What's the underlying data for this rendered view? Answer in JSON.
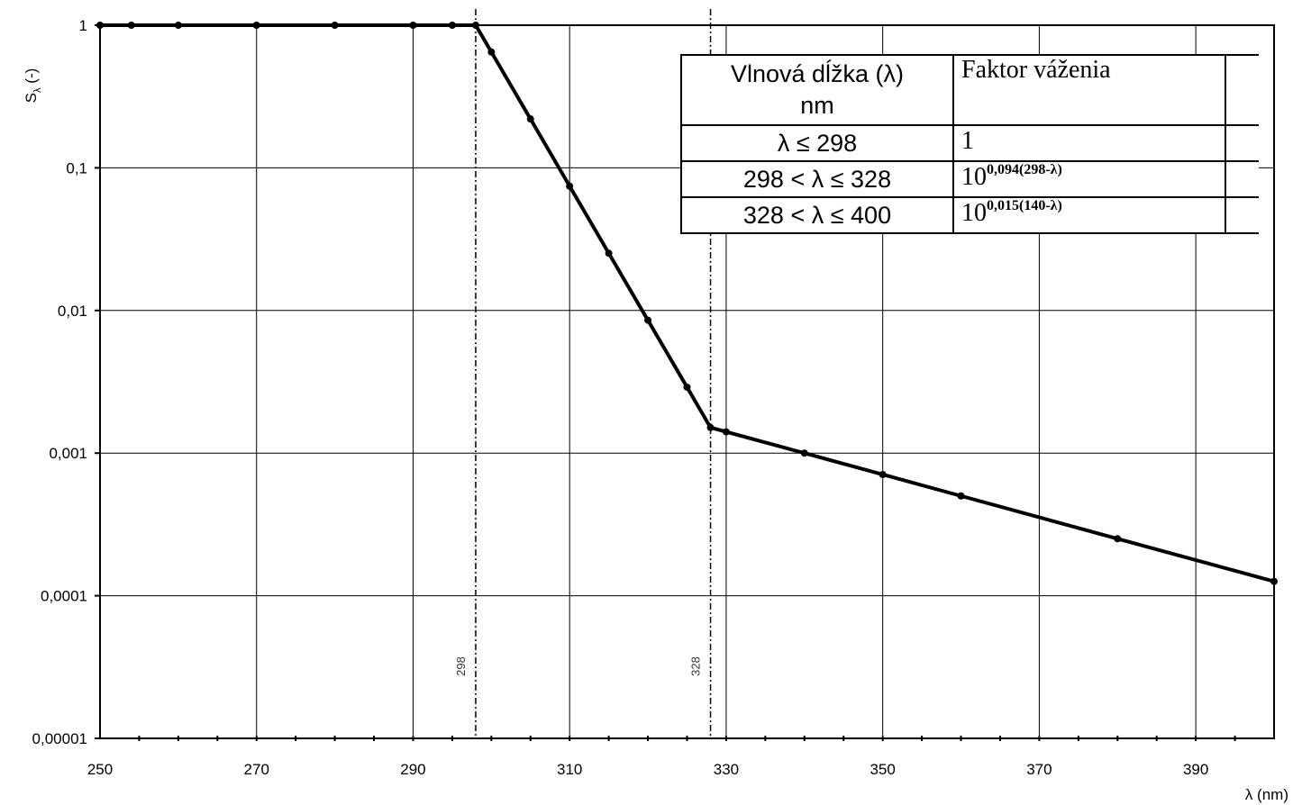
{
  "chart_data": {
    "type": "line",
    "title": "",
    "xlabel": "λ (nm)",
    "ylabel": "Sλ (-)",
    "ylabel_main": "S",
    "ylabel_sub": "λ",
    "ylabel_suffix": " (-)",
    "xlim": [
      250,
      400
    ],
    "ylim": [
      1e-05,
      1
    ],
    "yscale": "log",
    "grid": true,
    "x_ticks": [
      "250",
      "270",
      "290",
      "310",
      "330",
      "350",
      "370",
      "390"
    ],
    "x_tick_values": [
      250,
      270,
      290,
      310,
      330,
      350,
      370,
      390
    ],
    "y_ticks": [
      "1",
      "0,1",
      "0,01",
      "0,001",
      "0,0001",
      "0,00001"
    ],
    "y_tick_values": [
      1,
      0.1,
      0.01,
      0.001,
      0.0001,
      1e-05
    ],
    "markers": [
      {
        "x": 298,
        "label": "298"
      },
      {
        "x": 328,
        "label": "328"
      }
    ],
    "series": [
      {
        "x": [
          250,
          254,
          260,
          270,
          280,
          290,
          295,
          298,
          300,
          305,
          310,
          315,
          320,
          325,
          328,
          330,
          340,
          350,
          360,
          380,
          400
        ],
        "y": [
          1,
          1,
          1,
          1,
          1,
          1,
          1,
          1,
          0.649,
          0.22,
          0.0744,
          0.0252,
          0.00855,
          0.0029,
          0.00151,
          0.00141,
          0.001,
          0.000708,
          0.000501,
          0.000251,
          0.000126
        ]
      }
    ]
  },
  "legend_table": {
    "header_col1_line1": "Vlnová dĺžka (λ)",
    "header_col1_line2": "nm",
    "header_col2": "Faktor váženia",
    "rows": [
      {
        "range": "λ ≤ 298",
        "base": "1",
        "exponent": ""
      },
      {
        "range": "298 < λ ≤ 328",
        "base": "10",
        "exponent": "0,094(298-λ)"
      },
      {
        "range": "328 < λ ≤ 400",
        "base": "10",
        "exponent": "0,015(140-λ)"
      }
    ]
  }
}
